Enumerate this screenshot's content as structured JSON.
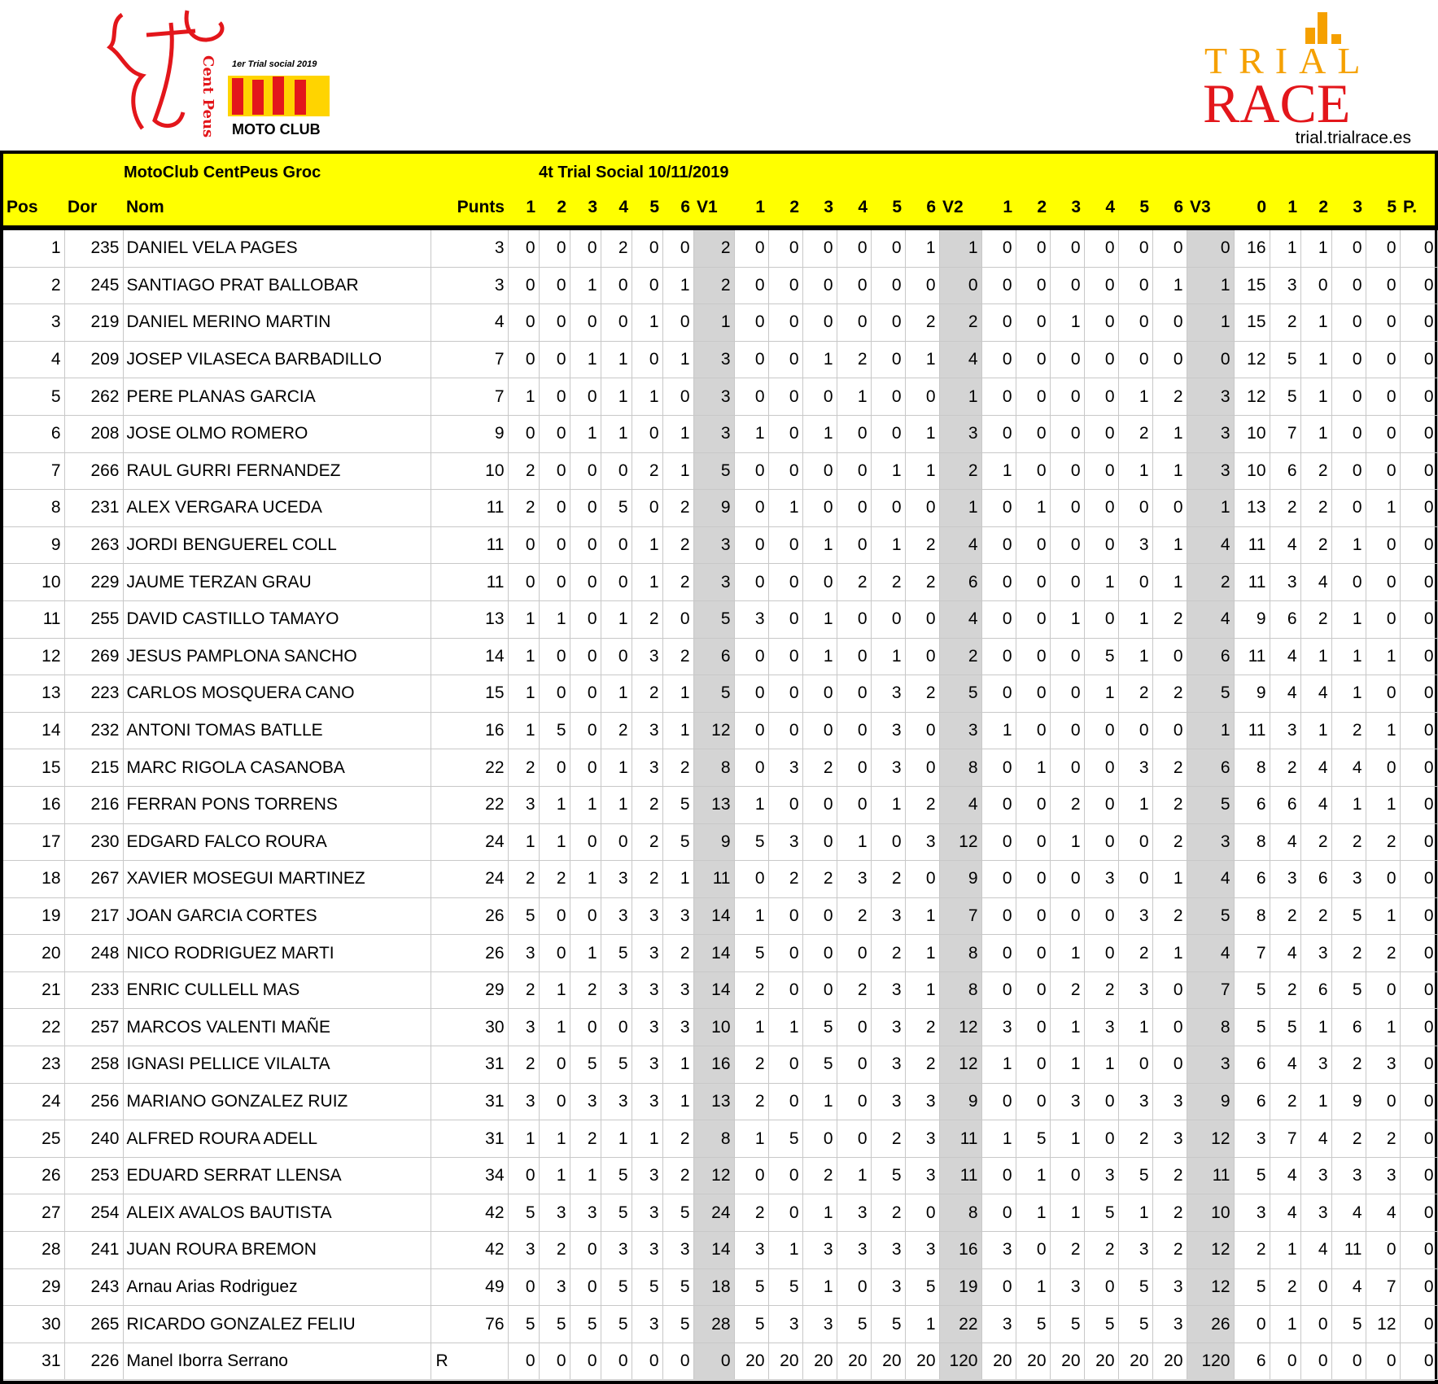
{
  "logos": {
    "left": {
      "text_caption": "1er Trial social 2019",
      "text_club": "MOTO CLUB",
      "text_vertical": "Cent Peus"
    },
    "right": {
      "line1": "TRIAL",
      "line2": "RACE",
      "site": "trial.trialrace.es"
    }
  },
  "colors": {
    "header_bg": "#ffff00",
    "total_col_bg": "#d4d4d4",
    "trial_orange": "#f5a000",
    "race_red": "#e3161b"
  },
  "header": {
    "club": "MotoClub CentPeus Groc",
    "event": "4t Trial Social 10/11/2019",
    "columns": [
      "Pos",
      "Dor",
      "Nom",
      "Punts",
      "1",
      "2",
      "3",
      "4",
      "5",
      "6",
      "V1",
      "1",
      "2",
      "3",
      "4",
      "5",
      "6",
      "V2",
      "1",
      "2",
      "3",
      "4",
      "5",
      "6",
      "V3",
      "0",
      "1",
      "2",
      "3",
      "5",
      "P."
    ]
  },
  "rows": [
    [
      "1",
      "235",
      "DANIEL VELA PAGES",
      "3",
      "0",
      "0",
      "0",
      "2",
      "0",
      "0",
      "2",
      "0",
      "0",
      "0",
      "0",
      "0",
      "1",
      "1",
      "0",
      "0",
      "0",
      "0",
      "0",
      "0",
      "0",
      "16",
      "1",
      "1",
      "0",
      "0",
      "0"
    ],
    [
      "2",
      "245",
      "SANTIAGO PRAT BALLOBAR",
      "3",
      "0",
      "0",
      "1",
      "0",
      "0",
      "1",
      "2",
      "0",
      "0",
      "0",
      "0",
      "0",
      "0",
      "0",
      "0",
      "0",
      "0",
      "0",
      "0",
      "1",
      "1",
      "15",
      "3",
      "0",
      "0",
      "0",
      "0"
    ],
    [
      "3",
      "219",
      "DANIEL MERINO MARTIN",
      "4",
      "0",
      "0",
      "0",
      "0",
      "1",
      "0",
      "1",
      "0",
      "0",
      "0",
      "0",
      "0",
      "2",
      "2",
      "0",
      "0",
      "1",
      "0",
      "0",
      "0",
      "1",
      "15",
      "2",
      "1",
      "0",
      "0",
      "0"
    ],
    [
      "4",
      "209",
      "JOSEP VILASECA BARBADILLO",
      "7",
      "0",
      "0",
      "1",
      "1",
      "0",
      "1",
      "3",
      "0",
      "0",
      "1",
      "2",
      "0",
      "1",
      "4",
      "0",
      "0",
      "0",
      "0",
      "0",
      "0",
      "0",
      "12",
      "5",
      "1",
      "0",
      "0",
      "0"
    ],
    [
      "5",
      "262",
      "PERE PLANAS GARCIA",
      "7",
      "1",
      "0",
      "0",
      "1",
      "1",
      "0",
      "3",
      "0",
      "0",
      "0",
      "1",
      "0",
      "0",
      "1",
      "0",
      "0",
      "0",
      "0",
      "1",
      "2",
      "3",
      "12",
      "5",
      "1",
      "0",
      "0",
      "0"
    ],
    [
      "6",
      "208",
      "JOSE OLMO ROMERO",
      "9",
      "0",
      "0",
      "1",
      "1",
      "0",
      "1",
      "3",
      "1",
      "0",
      "1",
      "0",
      "0",
      "1",
      "3",
      "0",
      "0",
      "0",
      "0",
      "2",
      "1",
      "3",
      "10",
      "7",
      "1",
      "0",
      "0",
      "0"
    ],
    [
      "7",
      "266",
      "RAUL GURRI FERNANDEZ",
      "10",
      "2",
      "0",
      "0",
      "0",
      "2",
      "1",
      "5",
      "0",
      "0",
      "0",
      "0",
      "1",
      "1",
      "2",
      "1",
      "0",
      "0",
      "0",
      "1",
      "1",
      "3",
      "10",
      "6",
      "2",
      "0",
      "0",
      "0"
    ],
    [
      "8",
      "231",
      "ALEX VERGARA UCEDA",
      "11",
      "2",
      "0",
      "0",
      "5",
      "0",
      "2",
      "9",
      "0",
      "1",
      "0",
      "0",
      "0",
      "0",
      "1",
      "0",
      "1",
      "0",
      "0",
      "0",
      "0",
      "1",
      "13",
      "2",
      "2",
      "0",
      "1",
      "0"
    ],
    [
      "9",
      "263",
      "JORDI BENGUEREL COLL",
      "11",
      "0",
      "0",
      "0",
      "0",
      "1",
      "2",
      "3",
      "0",
      "0",
      "1",
      "0",
      "1",
      "2",
      "4",
      "0",
      "0",
      "0",
      "0",
      "3",
      "1",
      "4",
      "11",
      "4",
      "2",
      "1",
      "0",
      "0"
    ],
    [
      "10",
      "229",
      "JAUME TERZAN GRAU",
      "11",
      "0",
      "0",
      "0",
      "0",
      "1",
      "2",
      "3",
      "0",
      "0",
      "0",
      "2",
      "2",
      "2",
      "6",
      "0",
      "0",
      "0",
      "1",
      "0",
      "1",
      "2",
      "11",
      "3",
      "4",
      "0",
      "0",
      "0"
    ],
    [
      "11",
      "255",
      "DAVID CASTILLO TAMAYO",
      "13",
      "1",
      "1",
      "0",
      "1",
      "2",
      "0",
      "5",
      "3",
      "0",
      "1",
      "0",
      "0",
      "0",
      "4",
      "0",
      "0",
      "1",
      "0",
      "1",
      "2",
      "4",
      "9",
      "6",
      "2",
      "1",
      "0",
      "0"
    ],
    [
      "12",
      "269",
      "JESUS PAMPLONA SANCHO",
      "14",
      "1",
      "0",
      "0",
      "0",
      "3",
      "2",
      "6",
      "0",
      "0",
      "1",
      "0",
      "1",
      "0",
      "2",
      "0",
      "0",
      "0",
      "5",
      "1",
      "0",
      "6",
      "11",
      "4",
      "1",
      "1",
      "1",
      "0"
    ],
    [
      "13",
      "223",
      "CARLOS MOSQUERA CANO",
      "15",
      "1",
      "0",
      "0",
      "1",
      "2",
      "1",
      "5",
      "0",
      "0",
      "0",
      "0",
      "3",
      "2",
      "5",
      "0",
      "0",
      "0",
      "1",
      "2",
      "2",
      "5",
      "9",
      "4",
      "4",
      "1",
      "0",
      "0"
    ],
    [
      "14",
      "232",
      "ANTONI TOMAS BATLLE",
      "16",
      "1",
      "5",
      "0",
      "2",
      "3",
      "1",
      "12",
      "0",
      "0",
      "0",
      "0",
      "3",
      "0",
      "3",
      "1",
      "0",
      "0",
      "0",
      "0",
      "0",
      "1",
      "11",
      "3",
      "1",
      "2",
      "1",
      "0"
    ],
    [
      "15",
      "215",
      "MARC RIGOLA CASANOBA",
      "22",
      "2",
      "0",
      "0",
      "1",
      "3",
      "2",
      "8",
      "0",
      "3",
      "2",
      "0",
      "3",
      "0",
      "8",
      "0",
      "1",
      "0",
      "0",
      "3",
      "2",
      "6",
      "8",
      "2",
      "4",
      "4",
      "0",
      "0"
    ],
    [
      "16",
      "216",
      "FERRAN PONS TORRENS",
      "22",
      "3",
      "1",
      "1",
      "1",
      "2",
      "5",
      "13",
      "1",
      "0",
      "0",
      "0",
      "1",
      "2",
      "4",
      "0",
      "0",
      "2",
      "0",
      "1",
      "2",
      "5",
      "6",
      "6",
      "4",
      "1",
      "1",
      "0"
    ],
    [
      "17",
      "230",
      "EDGARD FALCO ROURA",
      "24",
      "1",
      "1",
      "0",
      "0",
      "2",
      "5",
      "9",
      "5",
      "3",
      "0",
      "1",
      "0",
      "3",
      "12",
      "0",
      "0",
      "1",
      "0",
      "0",
      "2",
      "3",
      "8",
      "4",
      "2",
      "2",
      "2",
      "0"
    ],
    [
      "18",
      "267",
      "XAVIER MOSEGUI MARTINEZ",
      "24",
      "2",
      "2",
      "1",
      "3",
      "2",
      "1",
      "11",
      "0",
      "2",
      "2",
      "3",
      "2",
      "0",
      "9",
      "0",
      "0",
      "0",
      "3",
      "0",
      "1",
      "4",
      "6",
      "3",
      "6",
      "3",
      "0",
      "0"
    ],
    [
      "19",
      "217",
      "JOAN GARCIA CORTES",
      "26",
      "5",
      "0",
      "0",
      "3",
      "3",
      "3",
      "14",
      "1",
      "0",
      "0",
      "2",
      "3",
      "1",
      "7",
      "0",
      "0",
      "0",
      "0",
      "3",
      "2",
      "5",
      "8",
      "2",
      "2",
      "5",
      "1",
      "0"
    ],
    [
      "20",
      "248",
      "NICO RODRIGUEZ MARTI",
      "26",
      "3",
      "0",
      "1",
      "5",
      "3",
      "2",
      "14",
      "5",
      "0",
      "0",
      "0",
      "2",
      "1",
      "8",
      "0",
      "0",
      "1",
      "0",
      "2",
      "1",
      "4",
      "7",
      "4",
      "3",
      "2",
      "2",
      "0"
    ],
    [
      "21",
      "233",
      "ENRIC CULLELL MAS",
      "29",
      "2",
      "1",
      "2",
      "3",
      "3",
      "3",
      "14",
      "2",
      "0",
      "0",
      "2",
      "3",
      "1",
      "8",
      "0",
      "0",
      "2",
      "2",
      "3",
      "0",
      "7",
      "5",
      "2",
      "6",
      "5",
      "0",
      "0"
    ],
    [
      "22",
      "257",
      "MARCOS VALENTI MAÑE",
      "30",
      "3",
      "1",
      "0",
      "0",
      "3",
      "3",
      "10",
      "1",
      "1",
      "5",
      "0",
      "3",
      "2",
      "12",
      "3",
      "0",
      "1",
      "3",
      "1",
      "0",
      "8",
      "5",
      "5",
      "1",
      "6",
      "1",
      "0"
    ],
    [
      "23",
      "258",
      "IGNASI PELLICE VILALTA",
      "31",
      "2",
      "0",
      "5",
      "5",
      "3",
      "1",
      "16",
      "2",
      "0",
      "5",
      "0",
      "3",
      "2",
      "12",
      "1",
      "0",
      "1",
      "1",
      "0",
      "0",
      "3",
      "6",
      "4",
      "3",
      "2",
      "3",
      "0"
    ],
    [
      "24",
      "256",
      "MARIANO GONZALEZ RUIZ",
      "31",
      "3",
      "0",
      "3",
      "3",
      "3",
      "1",
      "13",
      "2",
      "0",
      "1",
      "0",
      "3",
      "3",
      "9",
      "0",
      "0",
      "3",
      "0",
      "3",
      "3",
      "9",
      "6",
      "2",
      "1",
      "9",
      "0",
      "0"
    ],
    [
      "25",
      "240",
      "ALFRED ROURA ADELL",
      "31",
      "1",
      "1",
      "2",
      "1",
      "1",
      "2",
      "8",
      "1",
      "5",
      "0",
      "0",
      "2",
      "3",
      "11",
      "1",
      "5",
      "1",
      "0",
      "2",
      "3",
      "12",
      "3",
      "7",
      "4",
      "2",
      "2",
      "0"
    ],
    [
      "26",
      "253",
      "EDUARD SERRAT LLENSA",
      "34",
      "0",
      "1",
      "1",
      "5",
      "3",
      "2",
      "12",
      "0",
      "0",
      "2",
      "1",
      "5",
      "3",
      "11",
      "0",
      "1",
      "0",
      "3",
      "5",
      "2",
      "11",
      "5",
      "4",
      "3",
      "3",
      "3",
      "0"
    ],
    [
      "27",
      "254",
      "ALEIX AVALOS BAUTISTA",
      "42",
      "5",
      "3",
      "3",
      "5",
      "3",
      "5",
      "24",
      "2",
      "0",
      "1",
      "3",
      "2",
      "0",
      "8",
      "0",
      "1",
      "1",
      "5",
      "1",
      "2",
      "10",
      "3",
      "4",
      "3",
      "4",
      "4",
      "0"
    ],
    [
      "28",
      "241",
      "JUAN ROURA BREMON",
      "42",
      "3",
      "2",
      "0",
      "3",
      "3",
      "3",
      "14",
      "3",
      "1",
      "3",
      "3",
      "3",
      "3",
      "16",
      "3",
      "0",
      "2",
      "2",
      "3",
      "2",
      "12",
      "2",
      "1",
      "4",
      "11",
      "0",
      "0"
    ],
    [
      "29",
      "243",
      "Arnau Arias Rodriguez",
      "49",
      "0",
      "3",
      "0",
      "5",
      "5",
      "5",
      "18",
      "5",
      "5",
      "1",
      "0",
      "3",
      "5",
      "19",
      "0",
      "1",
      "3",
      "0",
      "5",
      "3",
      "12",
      "5",
      "2",
      "0",
      "4",
      "7",
      "0"
    ],
    [
      "30",
      "265",
      "RICARDO GONZALEZ FELIU",
      "76",
      "5",
      "5",
      "5",
      "5",
      "3",
      "5",
      "28",
      "5",
      "3",
      "3",
      "5",
      "5",
      "1",
      "22",
      "3",
      "5",
      "5",
      "5",
      "5",
      "3",
      "26",
      "0",
      "1",
      "0",
      "5",
      "12",
      "0"
    ],
    [
      "31",
      "226",
      "Manel Iborra Serrano",
      "R",
      "0",
      "0",
      "0",
      "0",
      "0",
      "0",
      "0",
      "20",
      "20",
      "20",
      "20",
      "20",
      "20",
      "120",
      "20",
      "20",
      "20",
      "20",
      "20",
      "20",
      "120",
      "6",
      "0",
      "0",
      "0",
      "0",
      "0"
    ]
  ]
}
